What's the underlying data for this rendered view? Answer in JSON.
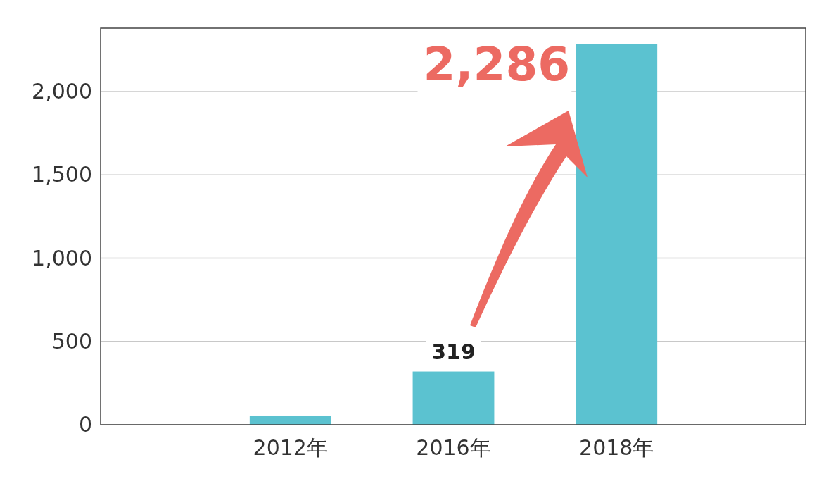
{
  "chart_data": {
    "type": "bar",
    "categories": [
      "2012年",
      "2016年",
      "2018年"
    ],
    "values": [
      55,
      319,
      2286
    ],
    "color": "#5bc2d0",
    "value_labels": [
      null,
      "319",
      null
    ],
    "annotations": [
      {
        "text": "2,286",
        "x": "2018年",
        "y": 2286
      }
    ],
    "ylim": [
      0,
      2380
    ],
    "yticks": [
      0,
      {
        "value": 500,
        "label": "500"
      },
      {
        "value": 1000,
        "label": "1,000"
      },
      {
        "value": 1500,
        "label": "1,500"
      },
      {
        "value": 2000,
        "label": "2,000"
      }
    ],
    "grid": "y"
  }
}
